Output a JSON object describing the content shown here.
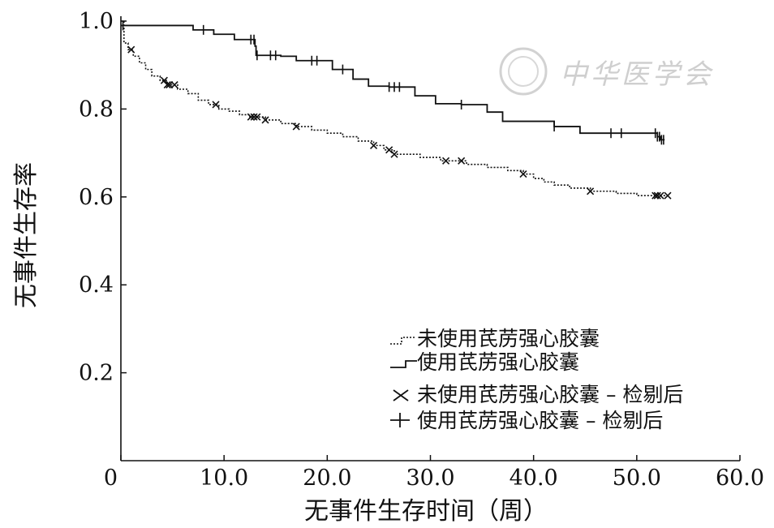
{
  "chart_data": {
    "type": "line",
    "title": "",
    "xlabel": "无事件生存时间（周）",
    "ylabel": "无事件生存率",
    "xlim": [
      0,
      60
    ],
    "ylim": [
      0,
      1.0
    ],
    "x_ticks": [
      {
        "value": 0,
        "label": "0"
      },
      {
        "value": 10,
        "label": "10.0"
      },
      {
        "value": 20,
        "label": "20.0"
      },
      {
        "value": 30,
        "label": "30.0"
      },
      {
        "value": 40,
        "label": "40.0"
      },
      {
        "value": 50,
        "label": "50.0"
      },
      {
        "value": 60,
        "label": "60.0"
      }
    ],
    "y_ticks": [
      {
        "value": 0.2,
        "label": "0.2"
      },
      {
        "value": 0.4,
        "label": "0.4"
      },
      {
        "value": 0.6,
        "label": "0.6"
      },
      {
        "value": 0.8,
        "label": "0.8"
      },
      {
        "value": 1.0,
        "label": "1.0"
      }
    ],
    "grid": false,
    "legend_position": "bottom-right",
    "series": [
      {
        "name": "未使用芪苈强心胶囊",
        "style": "dotted",
        "color": "#111111",
        "steps": [
          [
            0,
            1.0
          ],
          [
            0.3,
            0.95
          ],
          [
            0.7,
            0.935
          ],
          [
            1.2,
            0.92
          ],
          [
            1.8,
            0.905
          ],
          [
            2.4,
            0.89
          ],
          [
            3.0,
            0.875
          ],
          [
            3.8,
            0.865
          ],
          [
            4.5,
            0.855
          ],
          [
            5.5,
            0.845
          ],
          [
            6.5,
            0.835
          ],
          [
            7.5,
            0.82
          ],
          [
            8.5,
            0.81
          ],
          [
            9.5,
            0.8
          ],
          [
            10.5,
            0.795
          ],
          [
            11.5,
            0.787
          ],
          [
            12.5,
            0.782
          ],
          [
            14,
            0.775
          ],
          [
            15.5,
            0.767
          ],
          [
            17,
            0.76
          ],
          [
            18.5,
            0.752
          ],
          [
            20,
            0.745
          ],
          [
            21.5,
            0.737
          ],
          [
            23,
            0.727
          ],
          [
            24.5,
            0.717
          ],
          [
            25.5,
            0.707
          ],
          [
            26.5,
            0.697
          ],
          [
            29,
            0.69
          ],
          [
            31,
            0.682
          ],
          [
            33.5,
            0.674
          ],
          [
            35.5,
            0.667
          ],
          [
            37.5,
            0.66
          ],
          [
            39,
            0.652
          ],
          [
            40,
            0.642
          ],
          [
            41,
            0.634
          ],
          [
            42,
            0.627
          ],
          [
            43.5,
            0.62
          ],
          [
            45.5,
            0.613
          ],
          [
            48,
            0.608
          ],
          [
            50,
            0.603
          ],
          [
            53,
            0.603
          ]
        ],
        "censored": [
          1.0,
          4.2,
          4.5,
          4.7,
          5.2,
          9.2,
          12.6,
          12.9,
          13.2,
          14.0,
          17.0,
          24.5,
          26.0,
          26.5,
          31.5,
          33.0,
          39.0,
          45.5,
          51.8,
          52.0,
          52.3,
          53.0
        ]
      },
      {
        "name": "使用芪苈强心胶囊",
        "style": "solid",
        "color": "#111111",
        "steps": [
          [
            0,
            0.99
          ],
          [
            7,
            0.98
          ],
          [
            9,
            0.97
          ],
          [
            11,
            0.958
          ],
          [
            13,
            0.943
          ],
          [
            13.1,
            0.922
          ],
          [
            15.5,
            0.92
          ],
          [
            17,
            0.91
          ],
          [
            20.5,
            0.89
          ],
          [
            22.5,
            0.868
          ],
          [
            24,
            0.852
          ],
          [
            26,
            0.85
          ],
          [
            28.5,
            0.83
          ],
          [
            30.5,
            0.812
          ],
          [
            33,
            0.81
          ],
          [
            35.5,
            0.793
          ],
          [
            37,
            0.772
          ],
          [
            42,
            0.76
          ],
          [
            44.5,
            0.745
          ],
          [
            47,
            0.745
          ],
          [
            52,
            0.737
          ],
          [
            52.3,
            0.73
          ],
          [
            52.7,
            0.73
          ]
        ],
        "censored": [
          0.2,
          8.0,
          12.6,
          12.9,
          13.2,
          14.5,
          15.0,
          18.5,
          19.0,
          21.5,
          26.0,
          26.5,
          27.0,
          33.0,
          42.0,
          47.5,
          48.5,
          51.8,
          52.0,
          52.2,
          52.4,
          52.6
        ]
      }
    ],
    "legend": [
      {
        "label": "未使用芪苈强心胶囊",
        "symbol": "dotted-step"
      },
      {
        "label": "使用芪苈强心胶囊",
        "symbol": "solid-step"
      },
      {
        "label": "未使用芪苈强心胶囊 – 检剔后",
        "symbol": "x-mark"
      },
      {
        "label": "使用芪苈强心胶囊 – 检剔后",
        "symbol": "plus-mark"
      }
    ],
    "watermark": "中华医学会"
  }
}
